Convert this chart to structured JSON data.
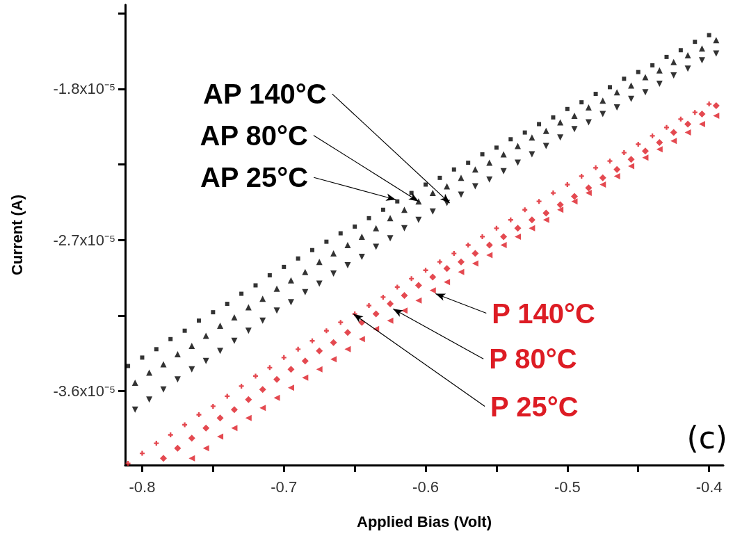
{
  "chart_data": {
    "type": "scatter",
    "xlabel": "Applied Bias (Volt)",
    "ylabel": "Current (A)",
    "xlim": [
      -0.812,
      -0.39
    ],
    "xticks": [
      -0.8,
      {
        "value": -0.75,
        "label": null
      },
      -0.7,
      {
        "value": -0.65,
        "label": null
      },
      -0.6,
      {
        "value": -0.55,
        "label": null
      },
      -0.5,
      {
        "value": -0.45,
        "label": null
      },
      -0.4
    ],
    "ylim": [
      -4.04e-05,
      -1.3e-05
    ],
    "yticks": [
      {
        "value": -1.35e-05,
        "label": null
      },
      {
        "value": -1.8e-05,
        "label": "-1.8x10⁻⁵"
      },
      {
        "value": -2.25e-05,
        "label": null
      },
      {
        "value": -2.7e-05,
        "label": "-2.7x10⁻⁵"
      },
      {
        "value": -3.15e-05,
        "label": null
      },
      {
        "value": -3.6e-05,
        "label": "-3.6x10⁻⁵"
      }
    ],
    "x": [
      -0.81,
      -0.8,
      -0.79,
      -0.78,
      -0.77,
      -0.76,
      -0.75,
      -0.74,
      -0.73,
      -0.72,
      -0.71,
      -0.7,
      -0.69,
      -0.68,
      -0.67,
      -0.66,
      -0.65,
      -0.64,
      -0.63,
      -0.62,
      -0.61,
      -0.6,
      -0.59,
      -0.58,
      -0.57,
      -0.56,
      -0.55,
      -0.54,
      -0.53,
      -0.52,
      -0.51,
      -0.5,
      -0.49,
      -0.48,
      -0.47,
      -0.46,
      -0.45,
      -0.44,
      -0.43,
      -0.42,
      -0.41,
      -0.4
    ],
    "series": [
      {
        "color": "#000000",
        "marker": "square",
        "values": [
          -3.45e-05,
          -3.4e-05,
          -3.35e-05,
          -3.29e-05,
          -3.24e-05,
          -3.18e-05,
          -3.13e-05,
          -3.08e-05,
          -3.02e-05,
          -2.97e-05,
          -2.91e-05,
          -2.86e-05,
          -2.81e-05,
          -2.76e-05,
          -2.71e-05,
          -2.66e-05,
          -2.62e-05,
          -2.57e-05,
          -2.52e-05,
          -2.47e-05,
          -2.42e-05,
          -2.37e-05,
          -2.33e-05,
          -2.28e-05,
          -2.24e-05,
          -2.19e-05,
          -2.15e-05,
          -2.1e-05,
          -2.06e-05,
          -2.01e-05,
          -1.97e-05,
          -1.92e-05,
          -1.88e-05,
          -1.83e-05,
          -1.79e-05,
          -1.74e-05,
          -1.7e-05,
          -1.66e-05,
          -1.61e-05,
          -1.57e-05,
          -1.52e-05,
          -1.48e-05
        ]
      },
      {
        "color": "#000000",
        "marker": "triangle",
        "x": [
          -0.805,
          -0.795,
          -0.785,
          -0.775,
          -0.765,
          -0.755,
          -0.745,
          -0.735,
          -0.725,
          -0.715,
          -0.705,
          -0.695,
          -0.685,
          -0.675,
          -0.665,
          -0.655,
          -0.645,
          -0.635,
          -0.625,
          -0.615,
          -0.605,
          -0.595,
          -0.585,
          -0.575,
          -0.565,
          -0.555,
          -0.545,
          -0.535,
          -0.525,
          -0.515,
          -0.505,
          -0.495,
          -0.485,
          -0.475,
          -0.465,
          -0.455,
          -0.445,
          -0.435,
          -0.425,
          -0.415,
          -0.405,
          -0.395
        ],
        "values": [
          -3.55e-05,
          -3.49e-05,
          -3.44e-05,
          -3.38e-05,
          -3.33e-05,
          -3.27e-05,
          -3.21e-05,
          -3.16e-05,
          -3.1e-05,
          -3.05e-05,
          -2.99e-05,
          -2.94e-05,
          -2.89e-05,
          -2.83e-05,
          -2.78e-05,
          -2.73e-05,
          -2.68e-05,
          -2.63e-05,
          -2.57e-05,
          -2.52e-05,
          -2.47e-05,
          -2.42e-05,
          -2.38e-05,
          -2.33e-05,
          -2.28e-05,
          -2.24e-05,
          -2.19e-05,
          -2.14e-05,
          -2.09e-05,
          -2.05e-05,
          -2e-05,
          -1.96e-05,
          -1.91e-05,
          -1.87e-05,
          -1.82e-05,
          -1.78e-05,
          -1.73e-05,
          -1.69e-05,
          -1.64e-05,
          -1.6e-05,
          -1.56e-05,
          -1.51e-05
        ]
      },
      {
        "color": "#000000",
        "marker": "triangle-down",
        "x": [
          -0.805,
          -0.795,
          -0.785,
          -0.775,
          -0.765,
          -0.755,
          -0.745,
          -0.735,
          -0.725,
          -0.715,
          -0.705,
          -0.695,
          -0.685,
          -0.675,
          -0.665,
          -0.655,
          -0.645,
          -0.635,
          -0.625,
          -0.615,
          -0.605,
          -0.595,
          -0.585,
          -0.575,
          -0.565,
          -0.555,
          -0.545,
          -0.535,
          -0.525,
          -0.515,
          -0.505,
          -0.495,
          -0.485,
          -0.475,
          -0.465,
          -0.455,
          -0.445,
          -0.435,
          -0.425,
          -0.415,
          -0.405,
          -0.395
        ],
        "values": [
          -3.71e-05,
          -3.65e-05,
          -3.59e-05,
          -3.53e-05,
          -3.47e-05,
          -3.42e-05,
          -3.36e-05,
          -3.3e-05,
          -3.24e-05,
          -3.18e-05,
          -3.12e-05,
          -3.07e-05,
          -3.01e-05,
          -2.96e-05,
          -2.9e-05,
          -2.85e-05,
          -2.8e-05,
          -2.74e-05,
          -2.69e-05,
          -2.63e-05,
          -2.58e-05,
          -2.53e-05,
          -2.48e-05,
          -2.43e-05,
          -2.38e-05,
          -2.34e-05,
          -2.29e-05,
          -2.24e-05,
          -2.19e-05,
          -2.14e-05,
          -2.09e-05,
          -2.04e-05,
          -2e-05,
          -1.95e-05,
          -1.91e-05,
          -1.86e-05,
          -1.82e-05,
          -1.77e-05,
          -1.72e-05,
          -1.68e-05,
          -1.63e-05,
          -1.59e-05
        ]
      },
      {
        "color": "#dd1c24",
        "marker": "cross",
        "values": [
          -4.03e-05,
          -3.97e-05,
          -3.91e-05,
          -3.86e-05,
          -3.8e-05,
          -3.74e-05,
          -3.69e-05,
          -3.63e-05,
          -3.57e-05,
          -3.51e-05,
          -3.46e-05,
          -3.4e-05,
          -3.35e-05,
          -3.3e-05,
          -3.24e-05,
          -3.19e-05,
          -3.14e-05,
          -3.09e-05,
          -3.04e-05,
          -2.98e-05,
          -2.93e-05,
          -2.88e-05,
          -2.83e-05,
          -2.78e-05,
          -2.73e-05,
          -2.68e-05,
          -2.63e-05,
          -2.58e-05,
          -2.52e-05,
          -2.47e-05,
          -2.42e-05,
          -2.37e-05,
          -2.32e-05,
          -2.27e-05,
          -2.23e-05,
          -2.18e-05,
          -2.13e-05,
          -2.08e-05,
          -2.03e-05,
          -1.98e-05,
          -1.94e-05,
          -1.89e-05
        ]
      },
      {
        "color": "#dd1c24",
        "marker": "diamond",
        "x": [
          -0.785,
          -0.775,
          -0.765,
          -0.755,
          -0.745,
          -0.735,
          -0.725,
          -0.715,
          -0.705,
          -0.695,
          -0.685,
          -0.675,
          -0.665,
          -0.655,
          -0.645,
          -0.635,
          -0.625,
          -0.615,
          -0.605,
          -0.595,
          -0.585,
          -0.575,
          -0.565,
          -0.555,
          -0.545,
          -0.535,
          -0.525,
          -0.515,
          -0.505,
          -0.495,
          -0.485,
          -0.475,
          -0.465,
          -0.455,
          -0.445,
          -0.435,
          -0.425,
          -0.415,
          -0.405,
          -0.395
        ],
        "values": [
          -4e-05,
          -3.94e-05,
          -3.88e-05,
          -3.82e-05,
          -3.76e-05,
          -3.71e-05,
          -3.65e-05,
          -3.59e-05,
          -3.53e-05,
          -3.47e-05,
          -3.42e-05,
          -3.36e-05,
          -3.31e-05,
          -3.25e-05,
          -3.19e-05,
          -3.14e-05,
          -3.08e-05,
          -3.03e-05,
          -2.97e-05,
          -2.92e-05,
          -2.87e-05,
          -2.83e-05,
          -2.78e-05,
          -2.73e-05,
          -2.68e-05,
          -2.63e-05,
          -2.58e-05,
          -2.54e-05,
          -2.49e-05,
          -2.44e-05,
          -2.39e-05,
          -2.33e-05,
          -2.28e-05,
          -2.22e-05,
          -2.17e-05,
          -2.12e-05,
          -2.06e-05,
          -2.01e-05,
          -1.95e-05,
          -1.9e-05
        ]
      },
      {
        "color": "#dd1c24",
        "marker": "triangle-left",
        "x": [
          -0.765,
          -0.755,
          -0.745,
          -0.735,
          -0.725,
          -0.715,
          -0.705,
          -0.695,
          -0.685,
          -0.675,
          -0.665,
          -0.655,
          -0.645,
          -0.635,
          -0.625,
          -0.615,
          -0.605,
          -0.595,
          -0.585,
          -0.575,
          -0.565,
          -0.555,
          -0.545,
          -0.535,
          -0.525,
          -0.515,
          -0.505,
          -0.495,
          -0.485,
          -0.475,
          -0.465,
          -0.455,
          -0.445,
          -0.435,
          -0.425,
          -0.415,
          -0.405,
          -0.395
        ],
        "values": [
          -4e-05,
          -3.94e-05,
          -3.87e-05,
          -3.82e-05,
          -3.76e-05,
          -3.7e-05,
          -3.64e-05,
          -3.58e-05,
          -3.52e-05,
          -3.47e-05,
          -3.41e-05,
          -3.35e-05,
          -3.29e-05,
          -3.23e-05,
          -3.18e-05,
          -3.12e-05,
          -3.06e-05,
          -3e-05,
          -2.95e-05,
          -2.89e-05,
          -2.84e-05,
          -2.79e-05,
          -2.73e-05,
          -2.68e-05,
          -2.63e-05,
          -2.58e-05,
          -2.52e-05,
          -2.47e-05,
          -2.42e-05,
          -2.37e-05,
          -2.32e-05,
          -2.26e-05,
          -2.21e-05,
          -2.16e-05,
          -2.11e-05,
          -2.06e-05,
          -2.01e-05,
          -1.96e-05
        ]
      }
    ],
    "annotations": [
      {
        "text": "AP 140°C",
        "x": -0.583,
        "y": -2.48e-05
      },
      {
        "text": "AP 80°C",
        "x": -0.605,
        "y": -2.47e-05
      },
      {
        "text": "AP 25°C",
        "x": -0.621,
        "y": -2.46e-05
      },
      {
        "text": "P 140°C",
        "x": -0.593,
        "y": -3.02e-05
      },
      {
        "text": "P 80°C",
        "x": -0.623,
        "y": -3.11e-05
      },
      {
        "text": "P 25°C",
        "x": -0.651,
        "y": -3.14e-05
      },
      "(c)"
    ]
  }
}
